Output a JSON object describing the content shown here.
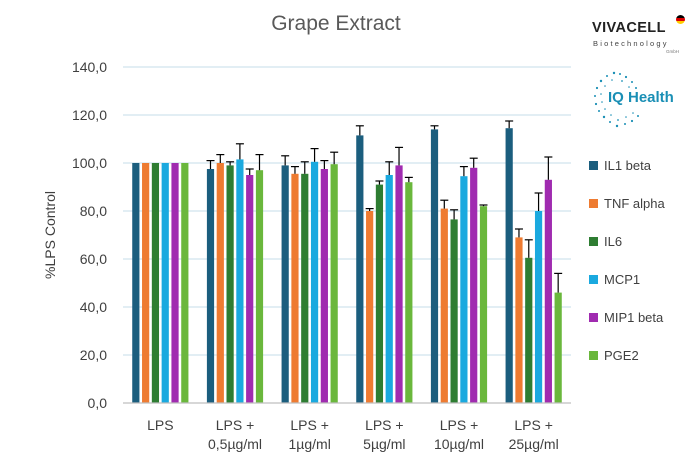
{
  "logos": {
    "vivacell_name": "VIVACELL",
    "vivacell_sub": "Biotechnology",
    "vivacell_gmbh": "GmbH",
    "iq_health": "IQ Health"
  },
  "colors": {
    "IL1 beta": "#1b5e7e",
    "TNF alpha": "#ee7b31",
    "IL6": "#2e7d32",
    "MCP1": "#1aa9df",
    "MIP1 beta": "#a02bb0",
    "PGE2": "#6ab73c",
    "grid": "#c5dce8",
    "axis": "#bfbfbf"
  },
  "chart_data": {
    "type": "bar",
    "title": "Grape Extract",
    "xlabel": "",
    "ylabel": "%LPS Control",
    "ylim": [
      0,
      140
    ],
    "yticks": [
      "0,0",
      "20,0",
      "40,0",
      "60,0",
      "80,0",
      "100,0",
      "120,0",
      "140,0"
    ],
    "grid": true,
    "legend_position": "right",
    "categories": [
      [
        "LPS"
      ],
      [
        "LPS +",
        "0,5µg/ml"
      ],
      [
        "LPS +",
        "1µg/ml"
      ],
      [
        "LPS +",
        "5µg/ml"
      ],
      [
        "LPS +",
        "10µg/ml"
      ],
      [
        "LPS +",
        "25µg/ml"
      ]
    ],
    "series": [
      {
        "name": "IL1 beta",
        "values": [
          100,
          97.5,
          99,
          111.5,
          114,
          114.5
        ],
        "errors": [
          0,
          3.5,
          4,
          4,
          1.5,
          3
        ]
      },
      {
        "name": "TNF alpha",
        "values": [
          100,
          100,
          95.5,
          80,
          81,
          69
        ],
        "errors": [
          0,
          3.5,
          3,
          1,
          3.5,
          3.5
        ]
      },
      {
        "name": "IL6",
        "values": [
          100,
          99,
          95.5,
          91,
          76.5,
          60.5
        ],
        "errors": [
          0,
          1.5,
          5,
          1.5,
          4,
          7.5
        ]
      },
      {
        "name": "MCP1",
        "values": [
          100,
          101.5,
          100.5,
          95,
          94.5,
          80
        ],
        "errors": [
          0,
          6.5,
          5.5,
          5.5,
          4,
          7.5
        ]
      },
      {
        "name": "MIP1 beta",
        "values": [
          100,
          95,
          97.5,
          99,
          98,
          93
        ],
        "errors": [
          0,
          2.5,
          3.5,
          7.5,
          4,
          9.5
        ]
      },
      {
        "name": "PGE2",
        "values": [
          100,
          97,
          99.5,
          92,
          82,
          46
        ],
        "errors": [
          0,
          6.5,
          5,
          2,
          0.5,
          8
        ]
      }
    ]
  }
}
